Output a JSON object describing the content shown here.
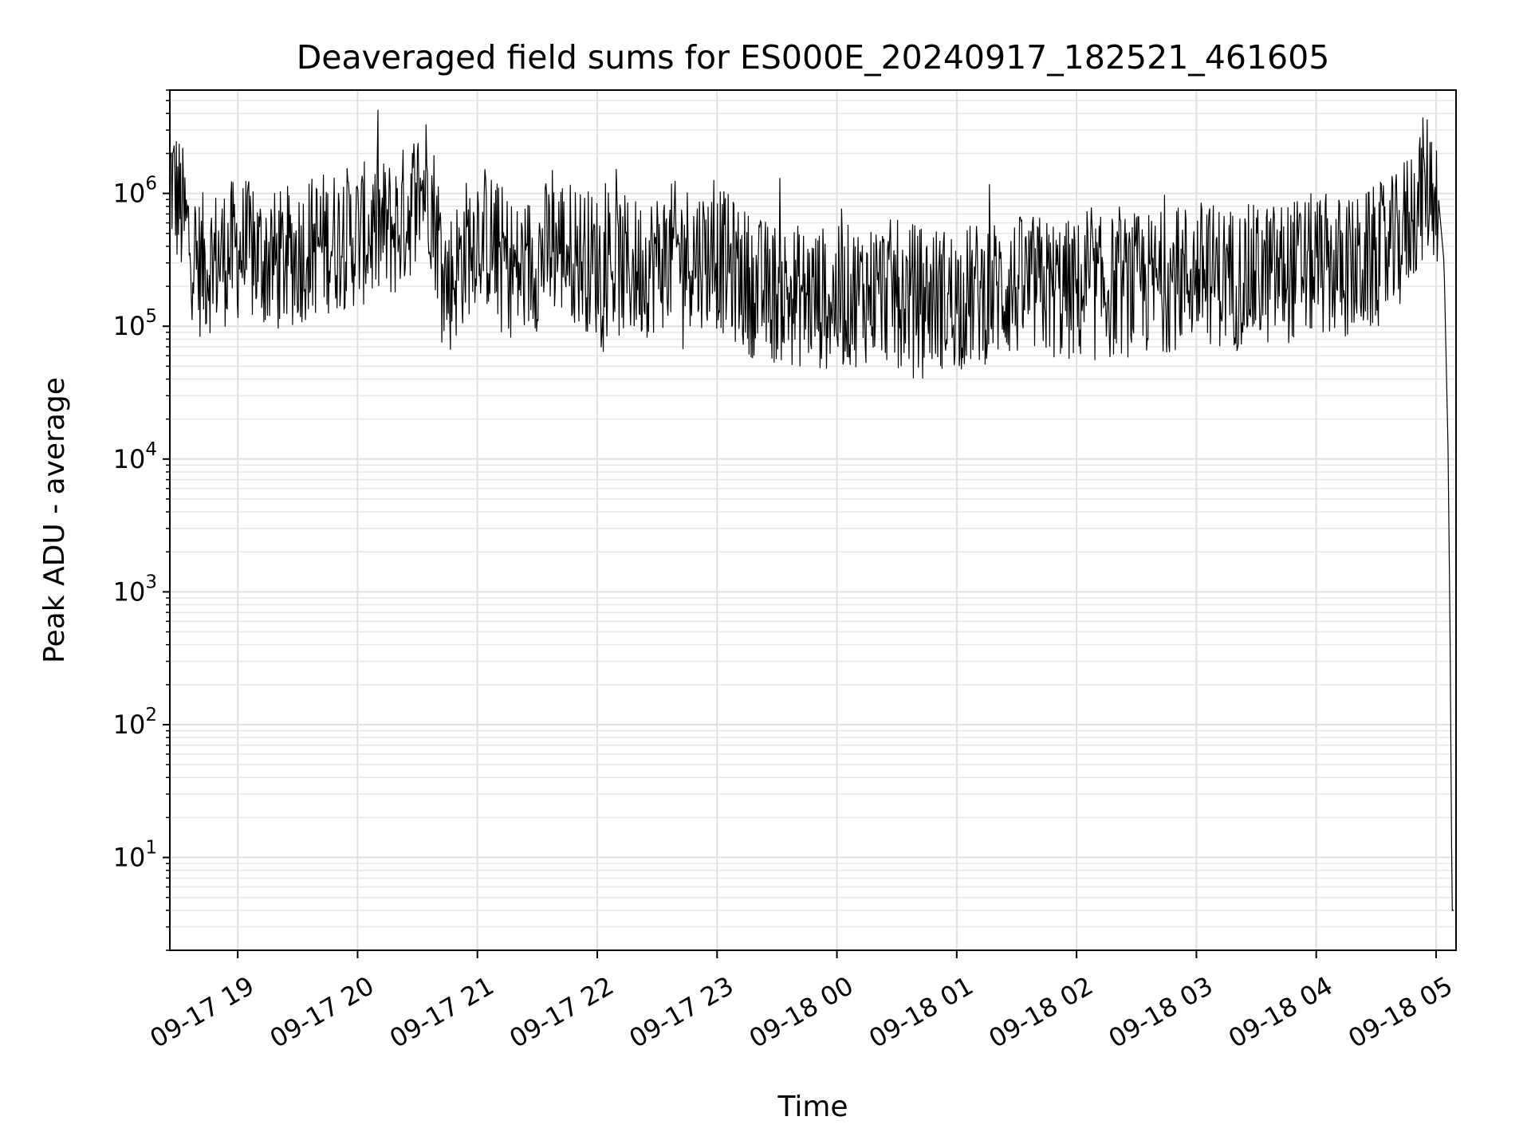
{
  "chart_data": {
    "type": "line",
    "title": "Deaveraged field sums for ES000E_20240917_182521_461605",
    "xlabel": "Time",
    "ylabel": "Peak ADU - average",
    "yscale": "log",
    "ylim": [
      2,
      6000000
    ],
    "xlim": [
      "2024-09-17 18:26",
      "2024-09-18 05:10"
    ],
    "x_ticks": [
      {
        "t": "2024-09-17 19:00",
        "label": "09-17 19"
      },
      {
        "t": "2024-09-17 20:00",
        "label": "09-17 20"
      },
      {
        "t": "2024-09-17 21:00",
        "label": "09-17 21"
      },
      {
        "t": "2024-09-17 22:00",
        "label": "09-17 22"
      },
      {
        "t": "2024-09-17 23:00",
        "label": "09-17 23"
      },
      {
        "t": "2024-09-18 00:00",
        "label": "09-18 00"
      },
      {
        "t": "2024-09-18 01:00",
        "label": "09-18 01"
      },
      {
        "t": "2024-09-18 02:00",
        "label": "09-18 02"
      },
      {
        "t": "2024-09-18 03:00",
        "label": "09-18 03"
      },
      {
        "t": "2024-09-18 04:00",
        "label": "09-18 04"
      },
      {
        "t": "2024-09-18 05:00",
        "label": "09-18 05"
      }
    ],
    "y_ticks": [
      {
        "value": 10,
        "base": "10",
        "exp": "1"
      },
      {
        "value": 100,
        "base": "10",
        "exp": "2"
      },
      {
        "value": 1000,
        "base": "10",
        "exp": "3"
      },
      {
        "value": 10000,
        "base": "10",
        "exp": "4"
      },
      {
        "value": 100000,
        "base": "10",
        "exp": "5"
      },
      {
        "value": 1000000,
        "base": "10",
        "exp": "6"
      }
    ],
    "grid": true,
    "series": [
      {
        "color": "#000000",
        "x": [
          "2024-09-17 18:26",
          "2024-09-17 18:40",
          "2024-09-17 19:00",
          "2024-09-17 19:20",
          "2024-09-17 19:40",
          "2024-09-17 20:00",
          "2024-09-17 20:20",
          "2024-09-17 20:35",
          "2024-09-17 20:45",
          "2024-09-17 21:00",
          "2024-09-17 21:20",
          "2024-09-17 21:40",
          "2024-09-17 22:00",
          "2024-09-17 22:20",
          "2024-09-17 22:40",
          "2024-09-17 23:00",
          "2024-09-17 23:20",
          "2024-09-17 23:40",
          "2024-09-18 00:00",
          "2024-09-18 00:20",
          "2024-09-18 00:40",
          "2024-09-18 01:00",
          "2024-09-18 01:20",
          "2024-09-18 01:40",
          "2024-09-18 02:00",
          "2024-09-18 02:20",
          "2024-09-18 02:40",
          "2024-09-18 03:00",
          "2024-09-18 03:20",
          "2024-09-18 03:40",
          "2024-09-18 04:00",
          "2024-09-18 04:20",
          "2024-09-18 04:40",
          "2024-09-18 04:55",
          "2024-09-18 05:01",
          "2024-09-18 05:04",
          "2024-09-18 05:06",
          "2024-09-18 05:07",
          "2024-09-18 05:08",
          "2024-09-18 05:09"
        ],
        "values": [
          1400000,
          280000,
          380000,
          300000,
          420000,
          480000,
          560000,
          1300000,
          200000,
          550000,
          250000,
          420000,
          290000,
          270000,
          360000,
          330000,
          190000,
          170000,
          160000,
          190000,
          170000,
          160000,
          190000,
          200000,
          180000,
          200000,
          210000,
          260000,
          230000,
          250000,
          290000,
          270000,
          400000,
          1200000,
          1000000,
          300000,
          12000,
          500,
          4,
          4
        ]
      }
    ]
  }
}
